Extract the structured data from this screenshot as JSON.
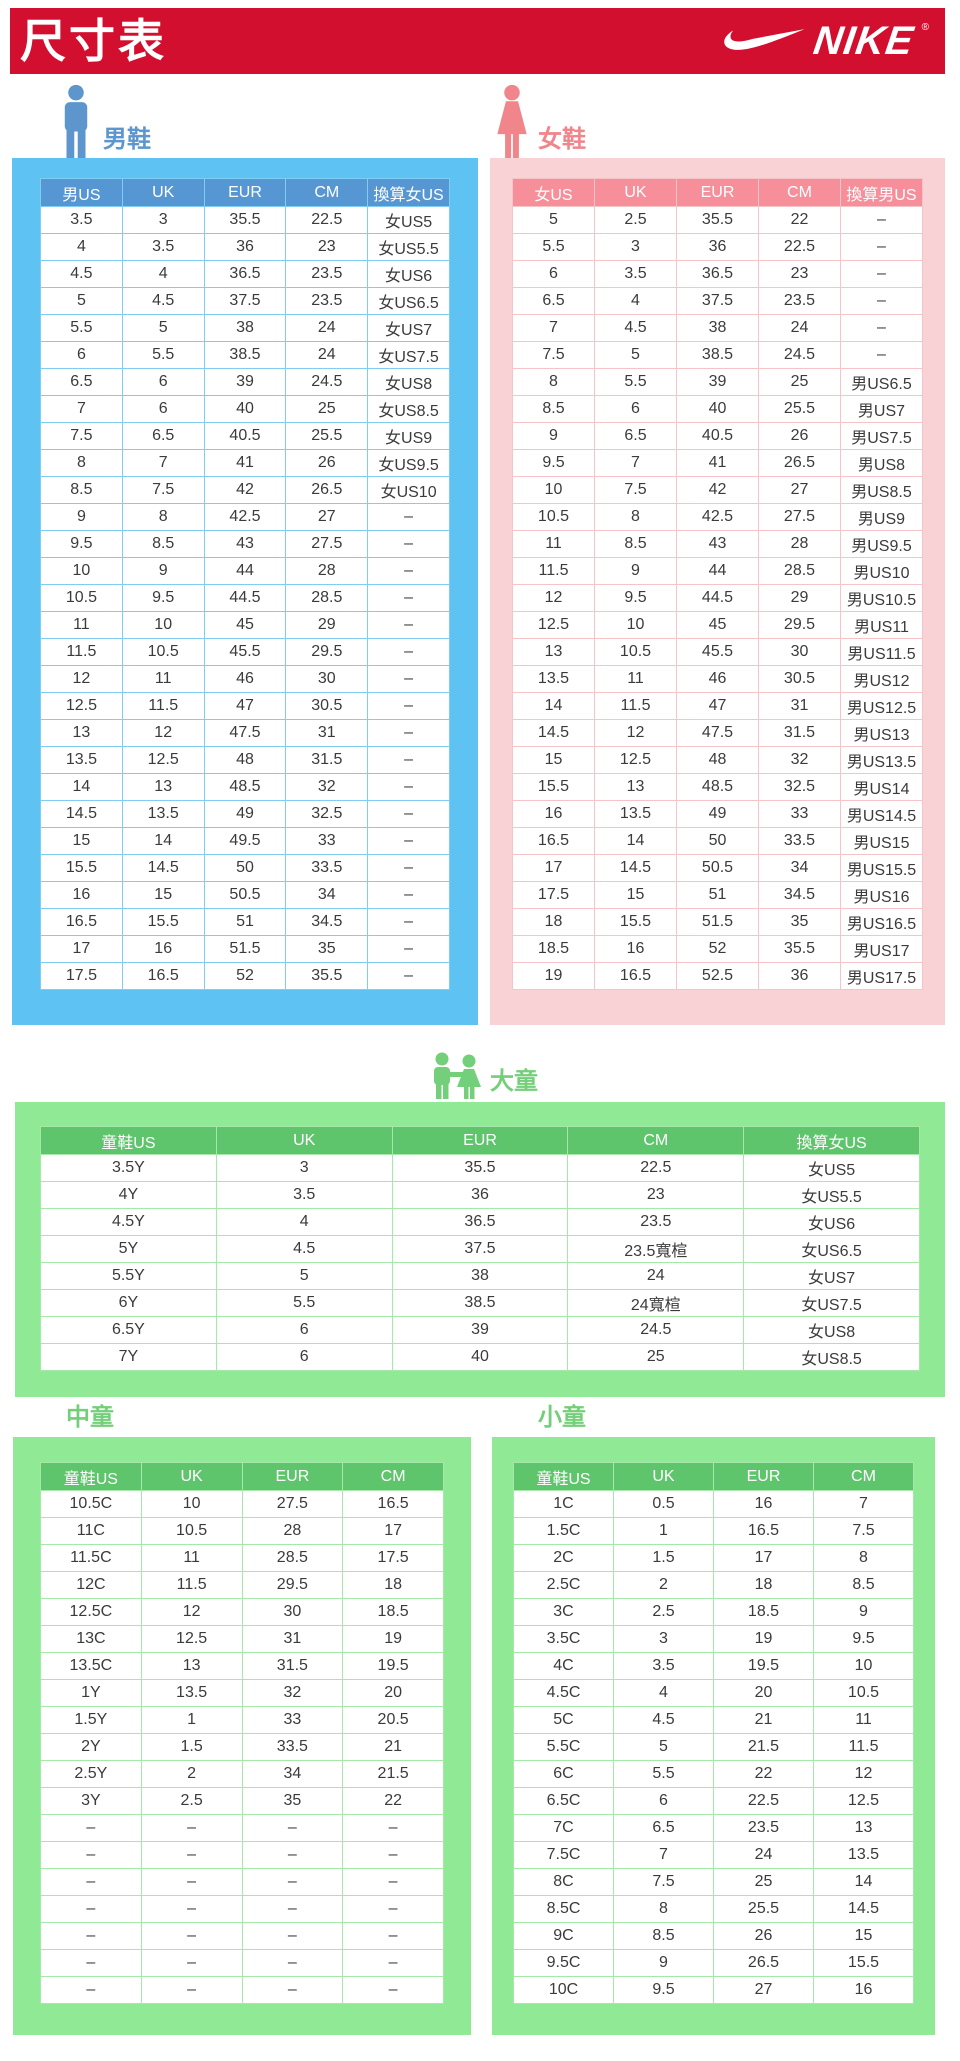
{
  "banner": {
    "title": "尺寸表",
    "brand": "NIKE",
    "brand_mark": "®"
  },
  "colors": {
    "nike_red": "#D20F2F",
    "men_panel_blue": "#5EC3F3",
    "men_header_blue": "#5697D3",
    "men_accent_blue": "#5C96CC",
    "women_panel_pink": "#F9D2D5",
    "women_header_pink": "#F78F9B",
    "women_accent_pink": "#F1858C",
    "kids_panel_green": "#90E994",
    "kids_header_green": "#5FC56D",
    "kids_accent_green": "#74CF7A"
  },
  "men": {
    "label": "男鞋",
    "columns": [
      "男US",
      "UK",
      "EUR",
      "CM",
      "換算女US"
    ],
    "rows": [
      [
        "3.5",
        "3",
        "35.5",
        "22.5",
        "女US5"
      ],
      [
        "4",
        "3.5",
        "36",
        "23",
        "女US5.5"
      ],
      [
        "4.5",
        "4",
        "36.5",
        "23.5",
        "女US6"
      ],
      [
        "5",
        "4.5",
        "37.5",
        "23.5",
        "女US6.5"
      ],
      [
        "5.5",
        "5",
        "38",
        "24",
        "女US7"
      ],
      [
        "6",
        "5.5",
        "38.5",
        "24",
        "女US7.5"
      ],
      [
        "6.5",
        "6",
        "39",
        "24.5",
        "女US8"
      ],
      [
        "7",
        "6",
        "40",
        "25",
        "女US8.5"
      ],
      [
        "7.5",
        "6.5",
        "40.5",
        "25.5",
        "女US9"
      ],
      [
        "8",
        "7",
        "41",
        "26",
        "女US9.5"
      ],
      [
        "8.5",
        "7.5",
        "42",
        "26.5",
        "女US10"
      ],
      [
        "9",
        "8",
        "42.5",
        "27",
        "–"
      ],
      [
        "9.5",
        "8.5",
        "43",
        "27.5",
        "–"
      ],
      [
        "10",
        "9",
        "44",
        "28",
        "–"
      ],
      [
        "10.5",
        "9.5",
        "44.5",
        "28.5",
        "–"
      ],
      [
        "11",
        "10",
        "45",
        "29",
        "–"
      ],
      [
        "11.5",
        "10.5",
        "45.5",
        "29.5",
        "–"
      ],
      [
        "12",
        "11",
        "46",
        "30",
        "–"
      ],
      [
        "12.5",
        "11.5",
        "47",
        "30.5",
        "–"
      ],
      [
        "13",
        "12",
        "47.5",
        "31",
        "–"
      ],
      [
        "13.5",
        "12.5",
        "48",
        "31.5",
        "–"
      ],
      [
        "14",
        "13",
        "48.5",
        "32",
        "–"
      ],
      [
        "14.5",
        "13.5",
        "49",
        "32.5",
        "–"
      ],
      [
        "15",
        "14",
        "49.5",
        "33",
        "–"
      ],
      [
        "15.5",
        "14.5",
        "50",
        "33.5",
        "–"
      ],
      [
        "16",
        "15",
        "50.5",
        "34",
        "–"
      ],
      [
        "16.5",
        "15.5",
        "51",
        "34.5",
        "–"
      ],
      [
        "17",
        "16",
        "51.5",
        "35",
        "–"
      ],
      [
        "17.5",
        "16.5",
        "52",
        "35.5",
        "–"
      ]
    ]
  },
  "women": {
    "label": "女鞋",
    "columns": [
      "女US",
      "UK",
      "EUR",
      "CM",
      "換算男US"
    ],
    "rows": [
      [
        "5",
        "2.5",
        "35.5",
        "22",
        "–"
      ],
      [
        "5.5",
        "3",
        "36",
        "22.5",
        "–"
      ],
      [
        "6",
        "3.5",
        "36.5",
        "23",
        "–"
      ],
      [
        "6.5",
        "4",
        "37.5",
        "23.5",
        "–"
      ],
      [
        "7",
        "4.5",
        "38",
        "24",
        "–"
      ],
      [
        "7.5",
        "5",
        "38.5",
        "24.5",
        "–"
      ],
      [
        "8",
        "5.5",
        "39",
        "25",
        "男US6.5"
      ],
      [
        "8.5",
        "6",
        "40",
        "25.5",
        "男US7"
      ],
      [
        "9",
        "6.5",
        "40.5",
        "26",
        "男US7.5"
      ],
      [
        "9.5",
        "7",
        "41",
        "26.5",
        "男US8"
      ],
      [
        "10",
        "7.5",
        "42",
        "27",
        "男US8.5"
      ],
      [
        "10.5",
        "8",
        "42.5",
        "27.5",
        "男US9"
      ],
      [
        "11",
        "8.5",
        "43",
        "28",
        "男US9.5"
      ],
      [
        "11.5",
        "9",
        "44",
        "28.5",
        "男US10"
      ],
      [
        "12",
        "9.5",
        "44.5",
        "29",
        "男US10.5"
      ],
      [
        "12.5",
        "10",
        "45",
        "29.5",
        "男US11"
      ],
      [
        "13",
        "10.5",
        "45.5",
        "30",
        "男US11.5"
      ],
      [
        "13.5",
        "11",
        "46",
        "30.5",
        "男US12"
      ],
      [
        "14",
        "11.5",
        "47",
        "31",
        "男US12.5"
      ],
      [
        "14.5",
        "12",
        "47.5",
        "31.5",
        "男US13"
      ],
      [
        "15",
        "12.5",
        "48",
        "32",
        "男US13.5"
      ],
      [
        "15.5",
        "13",
        "48.5",
        "32.5",
        "男US14"
      ],
      [
        "16",
        "13.5",
        "49",
        "33",
        "男US14.5"
      ],
      [
        "16.5",
        "14",
        "50",
        "33.5",
        "男US15"
      ],
      [
        "17",
        "14.5",
        "50.5",
        "34",
        "男US15.5"
      ],
      [
        "17.5",
        "15",
        "51",
        "34.5",
        "男US16"
      ],
      [
        "18",
        "15.5",
        "51.5",
        "35",
        "男US16.5"
      ],
      [
        "18.5",
        "16",
        "52",
        "35.5",
        "男US17"
      ],
      [
        "19",
        "16.5",
        "52.5",
        "36",
        "男US17.5"
      ]
    ]
  },
  "big_kids": {
    "label": "大童",
    "columns": [
      "童鞋US",
      "UK",
      "EUR",
      "CM",
      "換算女US"
    ],
    "rows": [
      [
        "3.5Y",
        "3",
        "35.5",
        "22.5",
        "女US5"
      ],
      [
        "4Y",
        "3.5",
        "36",
        "23",
        "女US5.5"
      ],
      [
        "4.5Y",
        "4",
        "36.5",
        "23.5",
        "女US6"
      ],
      [
        "5Y",
        "4.5",
        "37.5",
        "23.5寬楦",
        "女US6.5"
      ],
      [
        "5.5Y",
        "5",
        "38",
        "24",
        "女US7"
      ],
      [
        "6Y",
        "5.5",
        "38.5",
        "24寬楦",
        "女US7.5"
      ],
      [
        "6.5Y",
        "6",
        "39",
        "24.5",
        "女US8"
      ],
      [
        "7Y",
        "6",
        "40",
        "25",
        "女US8.5"
      ]
    ]
  },
  "mid_kids": {
    "label": "中童",
    "columns": [
      "童鞋US",
      "UK",
      "EUR",
      "CM"
    ],
    "rows": [
      [
        "10.5C",
        "10",
        "27.5",
        "16.5"
      ],
      [
        "11C",
        "10.5",
        "28",
        "17"
      ],
      [
        "11.5C",
        "11",
        "28.5",
        "17.5"
      ],
      [
        "12C",
        "11.5",
        "29.5",
        "18"
      ],
      [
        "12.5C",
        "12",
        "30",
        "18.5"
      ],
      [
        "13C",
        "12.5",
        "31",
        "19"
      ],
      [
        "13.5C",
        "13",
        "31.5",
        "19.5"
      ],
      [
        "1Y",
        "13.5",
        "32",
        "20"
      ],
      [
        "1.5Y",
        "1",
        "33",
        "20.5"
      ],
      [
        "2Y",
        "1.5",
        "33.5",
        "21"
      ],
      [
        "2.5Y",
        "2",
        "34",
        "21.5"
      ],
      [
        "3Y",
        "2.5",
        "35",
        "22"
      ],
      [
        "–",
        "–",
        "–",
        "–"
      ],
      [
        "–",
        "–",
        "–",
        "–"
      ],
      [
        "–",
        "–",
        "–",
        "–"
      ],
      [
        "–",
        "–",
        "–",
        "–"
      ],
      [
        "–",
        "–",
        "–",
        "–"
      ],
      [
        "–",
        "–",
        "–",
        "–"
      ],
      [
        "–",
        "–",
        "–",
        "–"
      ]
    ]
  },
  "small_kids": {
    "label": "小童",
    "columns": [
      "童鞋US",
      "UK",
      "EUR",
      "CM"
    ],
    "rows": [
      [
        "1C",
        "0.5",
        "16",
        "7"
      ],
      [
        "1.5C",
        "1",
        "16.5",
        "7.5"
      ],
      [
        "2C",
        "1.5",
        "17",
        "8"
      ],
      [
        "2.5C",
        "2",
        "18",
        "8.5"
      ],
      [
        "3C",
        "2.5",
        "18.5",
        "9"
      ],
      [
        "3.5C",
        "3",
        "19",
        "9.5"
      ],
      [
        "4C",
        "3.5",
        "19.5",
        "10"
      ],
      [
        "4.5C",
        "4",
        "20",
        "10.5"
      ],
      [
        "5C",
        "4.5",
        "21",
        "11"
      ],
      [
        "5.5C",
        "5",
        "21.5",
        "11.5"
      ],
      [
        "6C",
        "5.5",
        "22",
        "12"
      ],
      [
        "6.5C",
        "6",
        "22.5",
        "12.5"
      ],
      [
        "7C",
        "6.5",
        "23.5",
        "13"
      ],
      [
        "7.5C",
        "7",
        "24",
        "13.5"
      ],
      [
        "8C",
        "7.5",
        "25",
        "14"
      ],
      [
        "8.5C",
        "8",
        "25.5",
        "14.5"
      ],
      [
        "9C",
        "8.5",
        "26",
        "15"
      ],
      [
        "9.5C",
        "9",
        "26.5",
        "15.5"
      ],
      [
        "10C",
        "9.5",
        "27",
        "16"
      ]
    ]
  }
}
